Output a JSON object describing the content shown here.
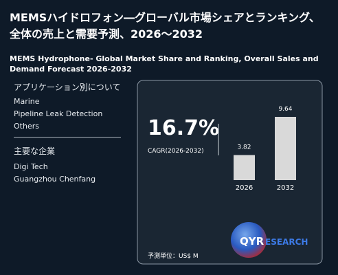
{
  "header": {
    "title": "MEMSハイドロフォン―グローバル市場シェアとランキング、全体の売上と需要予測、2026～2032",
    "subtitle": "MEMS Hydrophone- Global Market Share and Ranking, Overall Sales and Demand Forecast 2026-2032"
  },
  "sidebar": {
    "applications_heading": "アプリケーション別について",
    "applications": [
      "Marine",
      "Pipeline Leak Detection",
      "Others"
    ],
    "companies_heading": "主要な企業",
    "companies": [
      "Digi Tech",
      "Guangzhou Chenfang"
    ]
  },
  "panel": {
    "cagr_value": "16.7%",
    "cagr_label": "CAGR(2026-2032)",
    "unit": "予測単位：US$ M",
    "logo_prefix": "QYR",
    "logo_suffix": "ESEARCH"
  },
  "chart_data": {
    "type": "bar",
    "categories": [
      "2026",
      "2032"
    ],
    "values": [
      3.82,
      9.64
    ],
    "color": "#d9d9d9"
  }
}
